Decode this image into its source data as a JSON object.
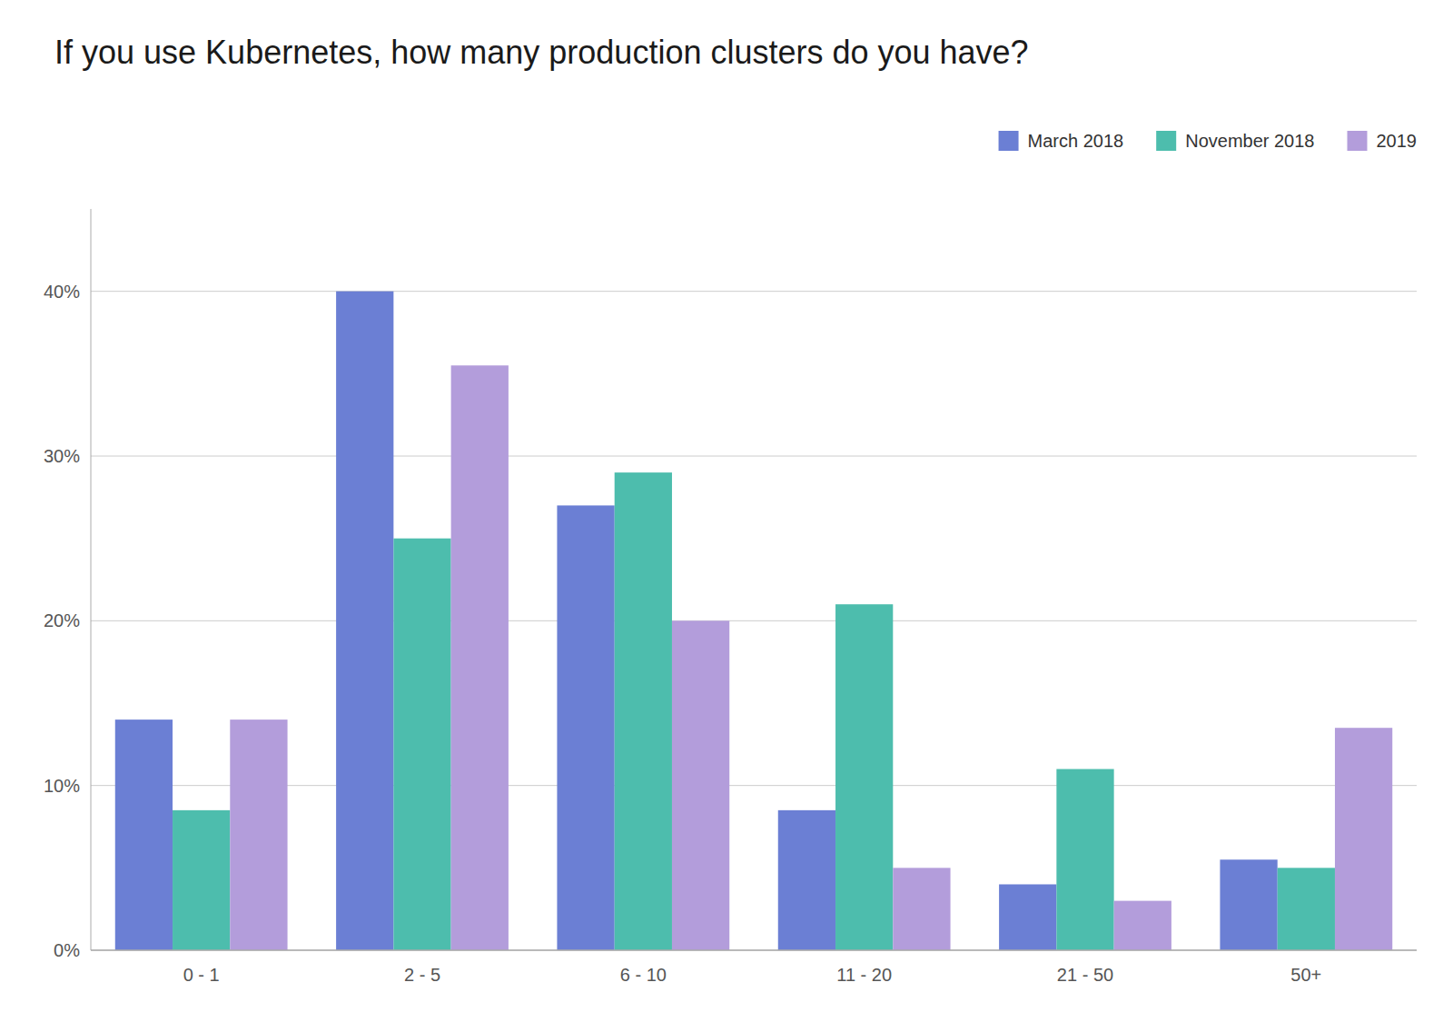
{
  "chart_data": {
    "type": "bar",
    "title": "If you use Kubernetes, how many production clusters do you have?",
    "categories": [
      "0 - 1",
      "2 - 5",
      "6 - 10",
      "11 - 20",
      "21 - 50",
      "50+"
    ],
    "series": [
      {
        "name": "March 2018",
        "color": "#6B7FD4",
        "values": [
          14,
          40,
          27,
          8.5,
          4,
          5.5
        ]
      },
      {
        "name": "November 2018",
        "color": "#4DBDAD",
        "values": [
          8.5,
          25,
          29,
          21,
          11,
          5
        ]
      },
      {
        "name": "2019",
        "color": "#B39DDB",
        "values": [
          14,
          35.5,
          20,
          5,
          3,
          13.5
        ]
      }
    ],
    "ylim": [
      0,
      45
    ],
    "yticks": [
      {
        "value": 0,
        "label": "0%"
      },
      {
        "value": 10,
        "label": "10%"
      },
      {
        "value": 20,
        "label": "20%"
      },
      {
        "value": 30,
        "label": "30%"
      },
      {
        "value": 40,
        "label": "40%"
      }
    ],
    "grid": true,
    "legend": "top-right"
  }
}
